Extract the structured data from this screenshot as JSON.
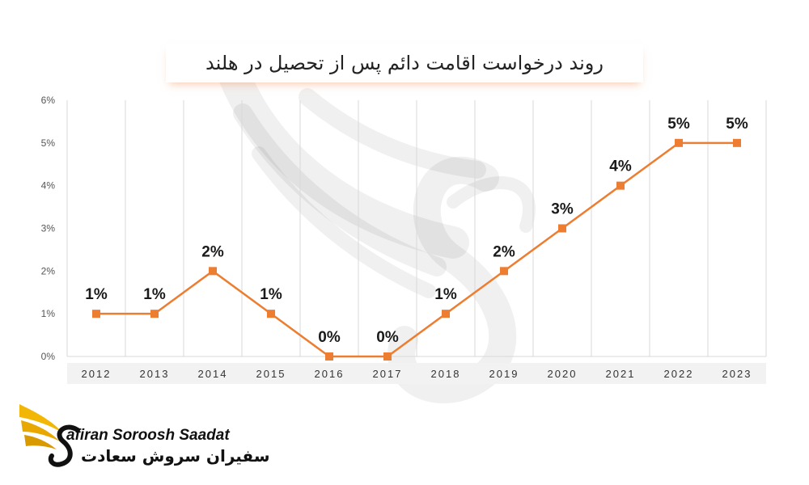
{
  "chart_data": {
    "type": "line",
    "title": "روند درخواست اقامت دائم پس از تحصیل در هلند",
    "xlabel": "",
    "ylabel": "",
    "categories": [
      "2012",
      "2013",
      "2014",
      "2015",
      "2016",
      "2017",
      "2018",
      "2019",
      "2020",
      "2021",
      "2022",
      "2023"
    ],
    "values": [
      1,
      1,
      2,
      1,
      0,
      0,
      1,
      2,
      3,
      4,
      5,
      5
    ],
    "data_labels": [
      "1%",
      "1%",
      "2%",
      "1%",
      "0%",
      "0%",
      "1%",
      "2%",
      "3%",
      "4%",
      "5%",
      "5%"
    ],
    "y_tick_labels": [
      "0%",
      "1%",
      "2%",
      "3%",
      "4%",
      "5%",
      "6%"
    ],
    "ylim": [
      0,
      6
    ],
    "grid": "vertical",
    "legend": "none",
    "colors": {
      "series": "#ED7D31",
      "grid": "#D9D9D9",
      "axis_band": "#F2F2F2"
    }
  },
  "logo": {
    "name_en": "afiran Soroosh Saadat",
    "name_fa": "سفیران سروش سعادت",
    "accent_color": "#F2B705"
  }
}
